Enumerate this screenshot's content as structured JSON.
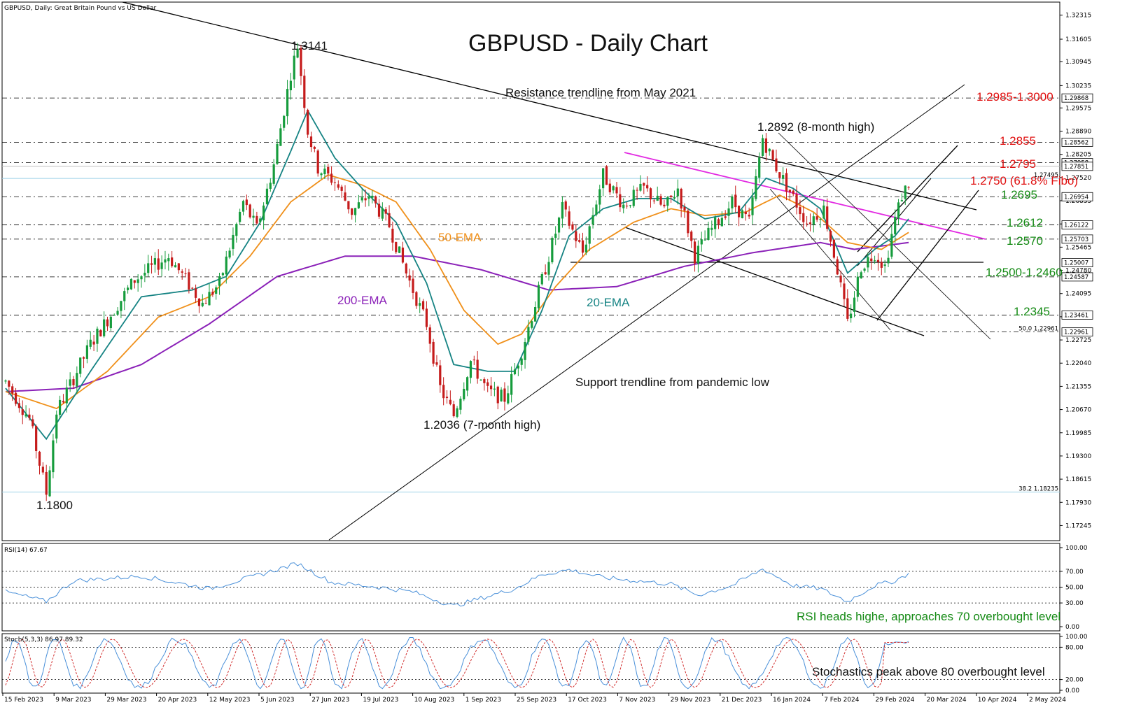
{
  "header": {
    "symbol_info": "GBPUSD, Daily:  Great Britain Pound vs US Dollar",
    "title": "GBPUSD - Daily Chart"
  },
  "colors": {
    "bull": "#169c3c",
    "bear": "#c51b1b",
    "ema20": "#158383",
    "ema50": "#f0901a",
    "ema200": "#8b21b8",
    "magenta": "#e22be2",
    "red_text": "#e01010",
    "green_text": "#148a14",
    "osc_line": "#4a90d9",
    "signal_line": "#d23030"
  },
  "chart_data": [
    {
      "type": "candlestick",
      "title": "GBPUSD - Daily Chart",
      "x_ticks": [
        "15 Feb 2023",
        "9 Mar 2023",
        "29 Mar 2023",
        "20 Apr 2023",
        "12 May 2023",
        "5 Jun 2023",
        "27 Jun 2023",
        "19 Jul 2023",
        "10 Aug 2023",
        "1 Sep 2023",
        "25 Sep 2023",
        "17 Oct 2023",
        "7 Nov 2023",
        "29 Nov 2023",
        "21 Dec 2023",
        "16 Jan 2024",
        "7 Feb 2024",
        "29 Feb 2024",
        "20 Mar 2024",
        "10 Apr 2024",
        "2 May 2024"
      ],
      "y_ticks": [
        "1.32315",
        "1.31605",
        "1.30945",
        "1.30235",
        "1.29575",
        "1.28890",
        "1.28205",
        "1.27520",
        "1.26835",
        "1.26150",
        "1.25465",
        "1.24780",
        "1.24095",
        "1.23410",
        "1.22725",
        "1.22040",
        "1.21355",
        "1.20670",
        "1.19985",
        "1.19300",
        "1.18615",
        "1.17930",
        "1.17245"
      ],
      "ylim": [
        1.168,
        1.327
      ],
      "price_tags": [
        {
          "label": "1.29868",
          "value": 1.29868
        },
        {
          "label": "1.28562",
          "value": 1.28562
        },
        {
          "label": "1.27958",
          "value": 1.27958
        },
        {
          "label": "1.27851",
          "value": 1.27851
        },
        {
          "label": "1.26954",
          "value": 1.26954
        },
        {
          "label": "1.26122",
          "value": 1.26122
        },
        {
          "label": "1.25703",
          "value": 1.25703
        },
        {
          "label": "1.25007",
          "value": 1.25007
        },
        {
          "label": "1.24587",
          "value": 1.24587
        },
        {
          "label": "1.23461",
          "value": 1.23461
        },
        {
          "label": "1.22961",
          "value": 1.22961
        }
      ],
      "fib_labels": [
        {
          "label": "1.27495",
          "value": 1.27495
        },
        {
          "label": "50.0 1.22961",
          "value": 1.22961
        },
        {
          "label": "38.2 1.18235",
          "value": 1.18235
        }
      ],
      "levels": [
        {
          "label": "1.2985-1.3000",
          "value": 1.2987,
          "color": "red"
        },
        {
          "label": "1.2855",
          "value": 1.2856,
          "color": "red"
        },
        {
          "label": "1.2795",
          "value": 1.2796,
          "color": "red"
        },
        {
          "label": "1.2750 (61.8% Fibo)",
          "value": 1.275,
          "color": "red"
        },
        {
          "label": "1.2695",
          "value": 1.2695,
          "color": "green"
        },
        {
          "label": "1.2612",
          "value": 1.2612,
          "color": "green"
        },
        {
          "label": "1.2570",
          "value": 1.257,
          "color": "green"
        },
        {
          "label": "1.2500-1.2460",
          "value": 1.25,
          "color": "green"
        },
        {
          "label": "1.2345",
          "value": 1.2346,
          "color": "green"
        }
      ],
      "annotations": [
        {
          "label": "1.3141",
          "value": 1.3141
        },
        {
          "label": "1.2892 (8-month high)",
          "value": 1.2892
        },
        {
          "label": "1.2036 (7-month high)",
          "value": 1.2036
        },
        {
          "label": "1.1800",
          "value": 1.18
        },
        {
          "label": "Resistance trendline from May 2021"
        },
        {
          "label": "Support trendline from pandemic low"
        },
        {
          "label": "50-EMA"
        },
        {
          "label": "200-EMA"
        },
        {
          "label": "20-EMA"
        }
      ],
      "anchors": [
        {
          "i": 0,
          "p": 1.215
        },
        {
          "i": 7,
          "p": 1.204
        },
        {
          "i": 12,
          "p": 1.182
        },
        {
          "i": 15,
          "p": 1.206
        },
        {
          "i": 25,
          "p": 1.226
        },
        {
          "i": 38,
          "p": 1.245
        },
        {
          "i": 48,
          "p": 1.252
        },
        {
          "i": 58,
          "p": 1.238
        },
        {
          "i": 63,
          "p": 1.244
        },
        {
          "i": 70,
          "p": 1.268
        },
        {
          "i": 74,
          "p": 1.26
        },
        {
          "i": 79,
          "p": 1.279
        },
        {
          "i": 84,
          "p": 1.306
        },
        {
          "i": 86,
          "p": 1.3141
        },
        {
          "i": 89,
          "p": 1.289
        },
        {
          "i": 92,
          "p": 1.278
        },
        {
          "i": 97,
          "p": 1.274
        },
        {
          "i": 102,
          "p": 1.265
        },
        {
          "i": 107,
          "p": 1.27
        },
        {
          "i": 113,
          "p": 1.261
        },
        {
          "i": 118,
          "p": 1.247
        },
        {
          "i": 124,
          "p": 1.232
        },
        {
          "i": 128,
          "p": 1.213
        },
        {
          "i": 132,
          "p": 1.205
        },
        {
          "i": 137,
          "p": 1.221
        },
        {
          "i": 142,
          "p": 1.212
        },
        {
          "i": 147,
          "p": 1.21
        },
        {
          "i": 152,
          "p": 1.224
        },
        {
          "i": 158,
          "p": 1.245
        },
        {
          "i": 164,
          "p": 1.266
        },
        {
          "i": 170,
          "p": 1.253
        },
        {
          "i": 176,
          "p": 1.276
        },
        {
          "i": 182,
          "p": 1.267
        },
        {
          "i": 188,
          "p": 1.272
        },
        {
          "i": 194,
          "p": 1.266
        },
        {
          "i": 198,
          "p": 1.272
        },
        {
          "i": 203,
          "p": 1.252
        },
        {
          "i": 208,
          "p": 1.26
        },
        {
          "i": 214,
          "p": 1.268
        },
        {
          "i": 219,
          "p": 1.262
        },
        {
          "i": 223,
          "p": 1.287
        },
        {
          "i": 226,
          "p": 1.28
        },
        {
          "i": 231,
          "p": 1.271
        },
        {
          "i": 236,
          "p": 1.262
        },
        {
          "i": 241,
          "p": 1.266
        },
        {
          "i": 245,
          "p": 1.248
        },
        {
          "i": 248,
          "p": 1.232
        },
        {
          "i": 252,
          "p": 1.249
        },
        {
          "i": 256,
          "p": 1.253
        },
        {
          "i": 259,
          "p": 1.249
        },
        {
          "i": 262,
          "p": 1.263
        },
        {
          "i": 264,
          "p": 1.27
        },
        {
          "i": 266,
          "p": 1.2735
        }
      ],
      "ema20_anchors": [
        {
          "i": 0,
          "p": 1.213
        },
        {
          "i": 12,
          "p": 1.198
        },
        {
          "i": 25,
          "p": 1.218
        },
        {
          "i": 40,
          "p": 1.24
        },
        {
          "i": 55,
          "p": 1.242
        },
        {
          "i": 65,
          "p": 1.246
        },
        {
          "i": 75,
          "p": 1.262
        },
        {
          "i": 84,
          "p": 1.283
        },
        {
          "i": 89,
          "p": 1.295
        },
        {
          "i": 97,
          "p": 1.281
        },
        {
          "i": 105,
          "p": 1.272
        },
        {
          "i": 115,
          "p": 1.262
        },
        {
          "i": 124,
          "p": 1.244
        },
        {
          "i": 132,
          "p": 1.22
        },
        {
          "i": 142,
          "p": 1.218
        },
        {
          "i": 150,
          "p": 1.218
        },
        {
          "i": 158,
          "p": 1.236
        },
        {
          "i": 166,
          "p": 1.258
        },
        {
          "i": 176,
          "p": 1.266
        },
        {
          "i": 186,
          "p": 1.269
        },
        {
          "i": 196,
          "p": 1.269
        },
        {
          "i": 206,
          "p": 1.263
        },
        {
          "i": 216,
          "p": 1.265
        },
        {
          "i": 224,
          "p": 1.275
        },
        {
          "i": 232,
          "p": 1.272
        },
        {
          "i": 240,
          "p": 1.266
        },
        {
          "i": 248,
          "p": 1.247
        },
        {
          "i": 256,
          "p": 1.254
        },
        {
          "i": 262,
          "p": 1.258
        },
        {
          "i": 266,
          "p": 1.263
        }
      ],
      "ema50_anchors": [
        {
          "i": 0,
          "p": 1.212
        },
        {
          "i": 15,
          "p": 1.207
        },
        {
          "i": 30,
          "p": 1.218
        },
        {
          "i": 45,
          "p": 1.234
        },
        {
          "i": 60,
          "p": 1.24
        },
        {
          "i": 72,
          "p": 1.252
        },
        {
          "i": 84,
          "p": 1.268
        },
        {
          "i": 95,
          "p": 1.276
        },
        {
          "i": 105,
          "p": 1.273
        },
        {
          "i": 115,
          "p": 1.268
        },
        {
          "i": 125,
          "p": 1.254
        },
        {
          "i": 135,
          "p": 1.236
        },
        {
          "i": 145,
          "p": 1.226
        },
        {
          "i": 152,
          "p": 1.229
        },
        {
          "i": 162,
          "p": 1.243
        },
        {
          "i": 172,
          "p": 1.254
        },
        {
          "i": 185,
          "p": 1.262
        },
        {
          "i": 196,
          "p": 1.266
        },
        {
          "i": 206,
          "p": 1.264
        },
        {
          "i": 218,
          "p": 1.265
        },
        {
          "i": 228,
          "p": 1.27
        },
        {
          "i": 238,
          "p": 1.265
        },
        {
          "i": 248,
          "p": 1.256
        },
        {
          "i": 258,
          "p": 1.254
        },
        {
          "i": 266,
          "p": 1.259
        }
      ],
      "ema200_anchors": [
        {
          "i": 0,
          "p": 1.212
        },
        {
          "i": 20,
          "p": 1.213
        },
        {
          "i": 40,
          "p": 1.22
        },
        {
          "i": 60,
          "p": 1.232
        },
        {
          "i": 80,
          "p": 1.246
        },
        {
          "i": 100,
          "p": 1.252
        },
        {
          "i": 120,
          "p": 1.252
        },
        {
          "i": 140,
          "p": 1.248
        },
        {
          "i": 160,
          "p": 1.242
        },
        {
          "i": 180,
          "p": 1.243
        },
        {
          "i": 200,
          "p": 1.249
        },
        {
          "i": 220,
          "p": 1.253
        },
        {
          "i": 240,
          "p": 1.256
        },
        {
          "i": 250,
          "p": 1.254
        },
        {
          "i": 266,
          "p": 1.256
        }
      ]
    },
    {
      "type": "line",
      "title": "RSI(14) 67.67",
      "y_ticks": [
        "100.00",
        "70.00",
        "50.00",
        "30.00",
        "0.00"
      ],
      "levels": [
        70,
        50,
        30
      ],
      "ylim": [
        0,
        100
      ],
      "anchors": [
        {
          "i": 0,
          "p": 44
        },
        {
          "i": 12,
          "p": 32
        },
        {
          "i": 20,
          "p": 58
        },
        {
          "i": 40,
          "p": 64
        },
        {
          "i": 60,
          "p": 48
        },
        {
          "i": 75,
          "p": 66
        },
        {
          "i": 86,
          "p": 80
        },
        {
          "i": 96,
          "p": 56
        },
        {
          "i": 110,
          "p": 50
        },
        {
          "i": 120,
          "p": 44
        },
        {
          "i": 132,
          "p": 26
        },
        {
          "i": 140,
          "p": 36
        },
        {
          "i": 150,
          "p": 48
        },
        {
          "i": 158,
          "p": 66
        },
        {
          "i": 166,
          "p": 72
        },
        {
          "i": 176,
          "p": 62
        },
        {
          "i": 186,
          "p": 58
        },
        {
          "i": 196,
          "p": 54
        },
        {
          "i": 204,
          "p": 40
        },
        {
          "i": 214,
          "p": 52
        },
        {
          "i": 223,
          "p": 73
        },
        {
          "i": 232,
          "p": 52
        },
        {
          "i": 240,
          "p": 48
        },
        {
          "i": 248,
          "p": 32
        },
        {
          "i": 256,
          "p": 52
        },
        {
          "i": 262,
          "p": 58
        },
        {
          "i": 266,
          "p": 67.67
        }
      ],
      "annotation": "RSI heads highe, approaches 70 overbought level"
    },
    {
      "type": "line",
      "title": "Stoch(5,3,3) 86.97 89.32",
      "y_ticks": [
        "100.00",
        "80.00",
        "20.00",
        "0.00"
      ],
      "levels": [
        80,
        20
      ],
      "ylim": [
        0,
        100
      ],
      "values_text": {
        "k": 86.97,
        "d": 89.32
      },
      "annotation": "Stochastics peak above 80 overbought level"
    }
  ]
}
